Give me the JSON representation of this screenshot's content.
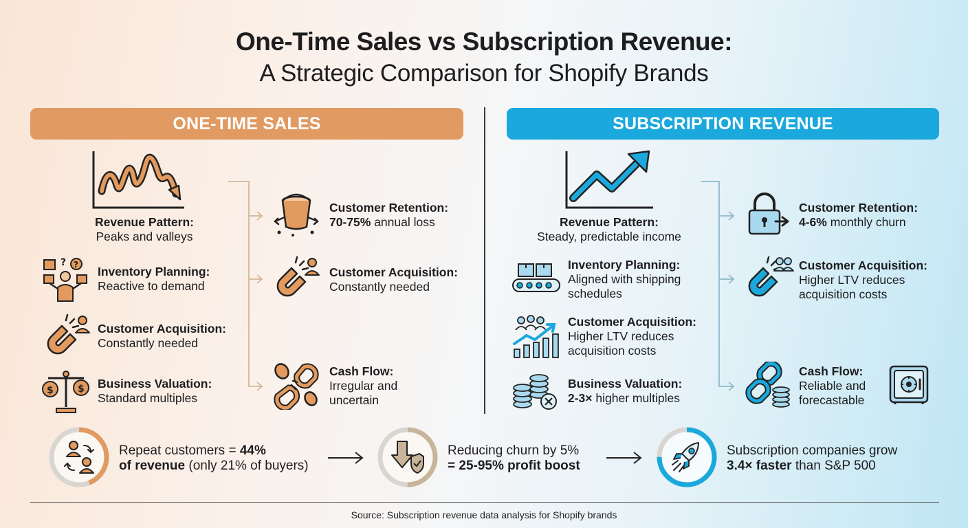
{
  "title": {
    "line1": "One-Time Sales vs Subscription Revenue:",
    "line2": "A Strategic Comparison for Shopify Brands"
  },
  "left": {
    "banner": "ONE-TIME SALES",
    "revenue_pattern": {
      "heading": "Revenue Pattern:",
      "body": "Peaks and valleys"
    },
    "inventory": {
      "heading": "Inventory Planning:",
      "body": "Reactive to demand"
    },
    "acquisition_list": {
      "heading": "Customer Acquisition:",
      "body": "Constantly needed"
    },
    "valuation": {
      "heading": "Business Valuation:",
      "body": "Standard multiples"
    },
    "retention": {
      "heading": "Customer Retention:",
      "body_bold": "70-75%",
      "body_rest": " annual loss"
    },
    "acquisition": {
      "heading": "Customer Acquisition:",
      "body": "Constantly needed"
    },
    "cashflow": {
      "heading": "Cash Flow:",
      "line1": "Irregular and",
      "line2": "uncertain"
    }
  },
  "right": {
    "banner": "SUBSCRIPTION REVENUE",
    "revenue_pattern": {
      "heading": "Revenue Pattern:",
      "body": "Steady, predictable income"
    },
    "inventory": {
      "heading": "Inventory Planning:",
      "line1": "Aligned with shipping",
      "line2": "schedules"
    },
    "acquisition_list": {
      "heading": "Customer Acquisition:",
      "line1": "Higher LTV reduces",
      "line2": "acquisition costs"
    },
    "valuation": {
      "heading": "Business Valuation:",
      "body_bold": "2-3×",
      "body_rest": " higher multiples"
    },
    "retention": {
      "heading": "Customer Retention:",
      "body_bold": "4-6%",
      "body_rest": " monthly churn"
    },
    "acquisition": {
      "heading": "Customer Acquisition:",
      "line1": "Higher LTV reduces",
      "line2": "acquisition costs"
    },
    "cashflow": {
      "heading": "Cash Flow:",
      "line1": "Reliable and",
      "line2": "forecastable"
    }
  },
  "stats": [
    {
      "l1_pre": "Repeat customers = ",
      "l1_bold": "44%",
      "l2_bold": "of revenue",
      "l2_rest": " (only 21% of buyers)",
      "progress": 0.44
    },
    {
      "l1_pre": "Reducing churn by 5%",
      "l2_bold": "= 25-95% profit boost",
      "progress": 0.5
    },
    {
      "l1_pre": "Subscription companies grow",
      "l2_bold": "3.4× faster",
      "l2_rest": " than S&P 500",
      "progress": 0.75
    }
  ],
  "source": "Source: Subscription revenue data analysis for Shopify brands",
  "colors": {
    "orange": "#e09a62",
    "blue": "#1ba8dc",
    "ring_track": "#d9d5d0",
    "ring_tan": "#c8b49a"
  }
}
